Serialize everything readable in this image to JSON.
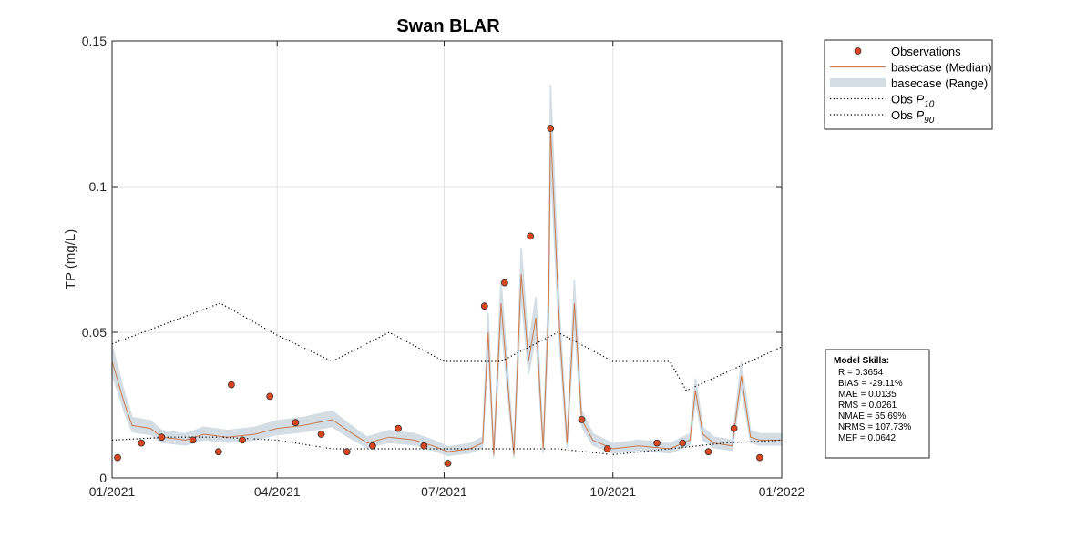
{
  "chart_data": {
    "type": "line",
    "title": "Swan BLAR",
    "ylabel": "TP (mg/L)",
    "xlabel": "",
    "xlim": [
      "2021-01-01",
      "2022-01-01"
    ],
    "ylim": [
      0,
      0.15
    ],
    "x_ticks": [
      {
        "date": "2021-01-01",
        "label": "01/2021"
      },
      {
        "date": "2021-04-01",
        "label": "04/2021"
      },
      {
        "date": "2021-07-01",
        "label": "07/2021"
      },
      {
        "date": "2021-10-01",
        "label": "10/2021"
      },
      {
        "date": "2022-01-01",
        "label": "01/2022"
      }
    ],
    "y_ticks": [
      {
        "value": 0,
        "label": "0"
      },
      {
        "value": 0.05,
        "label": "0.05"
      },
      {
        "value": 0.1,
        "label": "0.1"
      },
      {
        "value": 0.15,
        "label": "0.15"
      }
    ],
    "grid": true,
    "legend_position": "outside-top-right",
    "legend": [
      {
        "label": "Observations",
        "sub": "",
        "style": "marker",
        "color": "#d9461f"
      },
      {
        "label": "basecase (Median)",
        "sub": "",
        "style": "line",
        "color": "#c87a4f"
      },
      {
        "label": "basecase (Range)",
        "sub": "",
        "style": "band",
        "color": "#d3dde3"
      },
      {
        "label": "Obs P",
        "sub": "10",
        "style": "dotted",
        "color": "#000000"
      },
      {
        "label": "Obs P",
        "sub": "90",
        "style": "dotted",
        "color": "#000000"
      }
    ],
    "series": [
      {
        "name": "Observations",
        "kind": "scatter",
        "color": "#d9461f",
        "x": [
          "2021-01-04",
          "2021-01-17",
          "2021-01-31",
          "2021-02-14",
          "2021-02-29x",
          "2021-03-07",
          "2021-03-13",
          "2021-03-28",
          "2021-04-11",
          "2021-04-25",
          "2021-05-09",
          "2021-05-23",
          "2021-06-06",
          "2021-06-20",
          "2021-07-03",
          "2021-07-23",
          "2021-08-03",
          "2021-08-17",
          "2021-08-30",
          "2021-09-14",
          "2021-09-28",
          "2021-10-25",
          "2021-11-08",
          "2021-11-22",
          "2021-12-06",
          "2021-12-20"
        ],
        "y": [
          0.007,
          0.012,
          0.014,
          0.013,
          0.009,
          0.032,
          0.013,
          0.028,
          0.019,
          0.015,
          0.009,
          0.011,
          0.017,
          0.011,
          0.005,
          0.059,
          0.067,
          0.083,
          0.12,
          0.02,
          0.01,
          0.012,
          0.012,
          0.009,
          0.017,
          0.007
        ]
      },
      {
        "name": "basecase (Median)",
        "kind": "line",
        "color": "#c87a4f",
        "x": [
          "2021-01-01",
          "2021-01-08",
          "2021-01-12",
          "2021-01-22",
          "2021-01-31",
          "2021-02-10",
          "2021-02-20",
          "2021-03-05",
          "2021-03-20",
          "2021-04-01",
          "2021-04-15",
          "2021-05-01",
          "2021-05-10",
          "2021-05-20",
          "2021-06-01",
          "2021-06-15",
          "2021-06-25",
          "2021-07-03",
          "2021-07-15",
          "2021-07-22",
          "2021-07-25",
          "2021-07-28",
          "2021-08-01",
          "2021-08-05",
          "2021-08-08",
          "2021-08-12",
          "2021-08-16",
          "2021-08-20",
          "2021-08-24",
          "2021-08-27",
          "2021-08-30",
          "2021-09-02",
          "2021-09-06",
          "2021-09-10",
          "2021-09-14",
          "2021-09-20",
          "2021-10-01",
          "2021-10-15",
          "2021-11-01",
          "2021-11-12",
          "2021-11-15",
          "2021-11-19",
          "2021-11-25",
          "2021-12-05",
          "2021-12-10",
          "2021-12-15",
          "2021-12-20",
          "2022-01-01"
        ],
        "y": [
          0.04,
          0.025,
          0.018,
          0.017,
          0.014,
          0.013,
          0.015,
          0.014,
          0.015,
          0.017,
          0.018,
          0.02,
          0.016,
          0.012,
          0.014,
          0.013,
          0.011,
          0.009,
          0.01,
          0.012,
          0.05,
          0.008,
          0.06,
          0.03,
          0.008,
          0.07,
          0.04,
          0.055,
          0.01,
          0.06,
          0.12,
          0.05,
          0.012,
          0.06,
          0.02,
          0.013,
          0.01,
          0.011,
          0.01,
          0.013,
          0.03,
          0.015,
          0.012,
          0.011,
          0.035,
          0.014,
          0.013,
          0.013
        ]
      },
      {
        "name": "Obs P10",
        "kind": "dotted",
        "color": "#000000",
        "x": [
          "2021-01-01",
          "2021-02-01",
          "2021-03-01",
          "2021-04-01",
          "2021-05-01",
          "2021-06-01",
          "2021-07-01",
          "2021-08-01",
          "2021-09-01",
          "2021-10-01",
          "2021-11-01",
          "2021-12-01",
          "2022-01-01"
        ],
        "y": [
          0.013,
          0.014,
          0.014,
          0.013,
          0.01,
          0.01,
          0.01,
          0.01,
          0.01,
          0.008,
          0.01,
          0.012,
          0.013
        ]
      },
      {
        "name": "Obs P90",
        "kind": "dotted",
        "color": "#000000",
        "x": [
          "2021-01-01",
          "2021-03-01",
          "2021-04-01",
          "2021-05-01",
          "2021-06-01",
          "2021-07-01",
          "2021-08-01",
          "2021-09-01",
          "2021-10-01",
          "2021-11-01",
          "2021-11-10",
          "2021-12-01",
          "2022-01-01"
        ],
        "y": [
          0.046,
          0.06,
          0.049,
          0.04,
          0.05,
          0.04,
          0.04,
          0.05,
          0.04,
          0.04,
          0.03,
          0.036,
          0.045
        ]
      }
    ]
  },
  "skills": {
    "header": "Model Skills:",
    "rows": [
      "R    = 0.3654",
      "BIAS = -29.11%",
      "MAE  = 0.0135",
      "RMS  = 0.0261",
      "NMAE = 55.69%",
      "NRMS = 107.73%",
      "MEF  = 0.0642"
    ]
  }
}
